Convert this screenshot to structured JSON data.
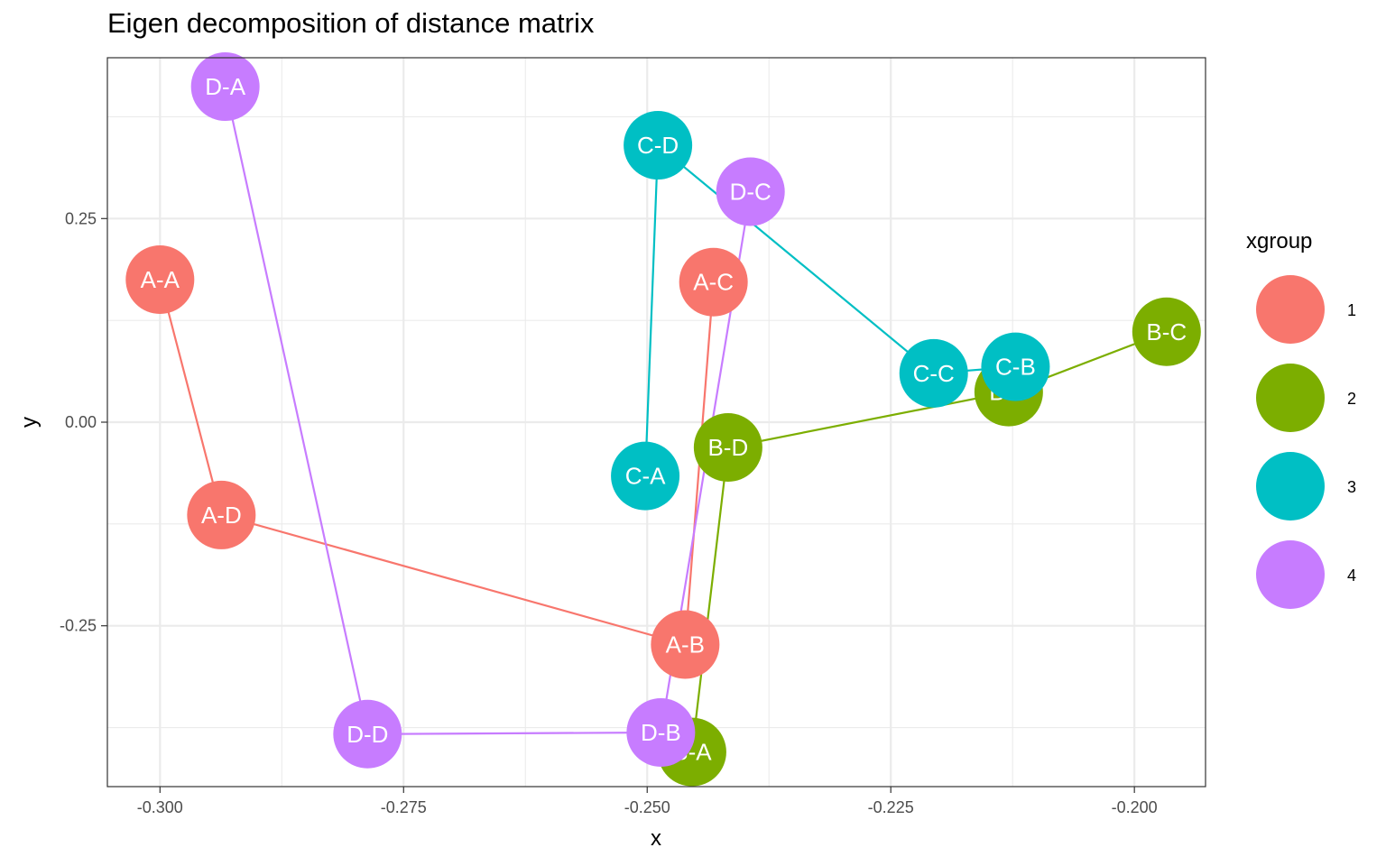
{
  "chart_data": {
    "type": "scatter",
    "title": "Eigen decomposition of distance matrix",
    "xlabel": "x",
    "ylabel": "y",
    "xlim": [
      -0.3054,
      -0.1927
    ],
    "ylim": [
      -0.4475,
      0.4475
    ],
    "x_ticks": [
      {
        "value": -0.3,
        "label": "-0.300"
      },
      {
        "value": -0.275,
        "label": "-0.275"
      },
      {
        "value": -0.25,
        "label": "-0.250"
      },
      {
        "value": -0.225,
        "label": "-0.225"
      },
      {
        "value": -0.2,
        "label": "-0.200"
      }
    ],
    "y_ticks": [
      {
        "value": 0.25,
        "label": "0.25"
      },
      {
        "value": 0.0,
        "label": "0.00"
      },
      {
        "value": -0.25,
        "label": "-0.25"
      }
    ],
    "grid": true,
    "legend": {
      "title": "xgroup",
      "position": "right"
    },
    "series": [
      {
        "name": "1",
        "color": "#F8766D",
        "points": [
          {
            "label": "A-A",
            "x": -0.3,
            "y": 0.175
          },
          {
            "label": "A-D",
            "x": -0.2937,
            "y": -0.114
          },
          {
            "label": "A-B",
            "x": -0.2461,
            "y": -0.273
          },
          {
            "label": "A-C",
            "x": -0.2432,
            "y": 0.172
          }
        ]
      },
      {
        "name": "2",
        "color": "#7CAE00",
        "points": [
          {
            "label": "B-A",
            "x": -0.2454,
            "y": -0.405
          },
          {
            "label": "B-D",
            "x": -0.2417,
            "y": -0.031
          },
          {
            "label": "B-B",
            "x": -0.2129,
            "y": 0.037
          },
          {
            "label": "B-C",
            "x": -0.1967,
            "y": 0.111
          }
        ]
      },
      {
        "name": "3",
        "color": "#00BFC4",
        "points": [
          {
            "label": "C-A",
            "x": -0.2502,
            "y": -0.066
          },
          {
            "label": "C-D",
            "x": -0.2489,
            "y": 0.34
          },
          {
            "label": "C-C",
            "x": -0.2206,
            "y": 0.06
          },
          {
            "label": "C-B",
            "x": -0.2122,
            "y": 0.068
          }
        ]
      },
      {
        "name": "4",
        "color": "#C77CFF",
        "points": [
          {
            "label": "D-A",
            "x": -0.2933,
            "y": 0.412
          },
          {
            "label": "D-D",
            "x": -0.2787,
            "y": -0.383
          },
          {
            "label": "D-B",
            "x": -0.2486,
            "y": -0.381
          },
          {
            "label": "D-C",
            "x": -0.2394,
            "y": 0.283
          }
        ]
      }
    ]
  }
}
